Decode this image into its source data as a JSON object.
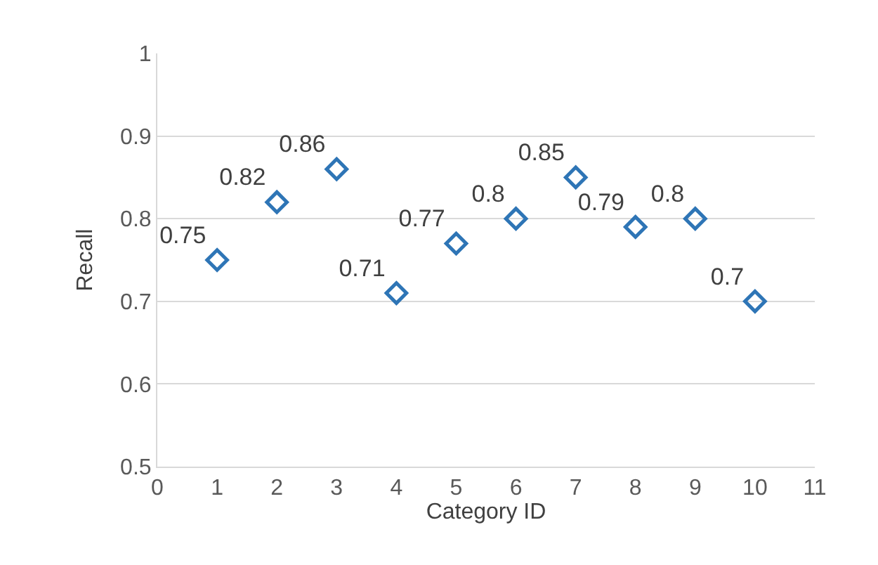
{
  "chart_data": {
    "type": "scatter",
    "xlabel": "Category ID",
    "ylabel": "Recall",
    "x": [
      1,
      2,
      3,
      4,
      5,
      6,
      7,
      8,
      9,
      10
    ],
    "series": [
      {
        "color": "#2e75b6",
        "values": [
          0.75,
          0.82,
          0.86,
          0.71,
          0.77,
          0.8,
          0.85,
          0.79,
          0.8,
          0.7
        ]
      }
    ],
    "xlim": [
      0,
      11
    ],
    "xticks": [
      0,
      1,
      2,
      3,
      4,
      5,
      6,
      7,
      8,
      9,
      10,
      11
    ],
    "ylim": [
      0.5,
      1
    ],
    "yticks": [
      0.5,
      0.6,
      0.7,
      0.8,
      0.9,
      1
    ],
    "grid": "y",
    "legend": false,
    "marker": "diamond",
    "data_labels": true
  }
}
